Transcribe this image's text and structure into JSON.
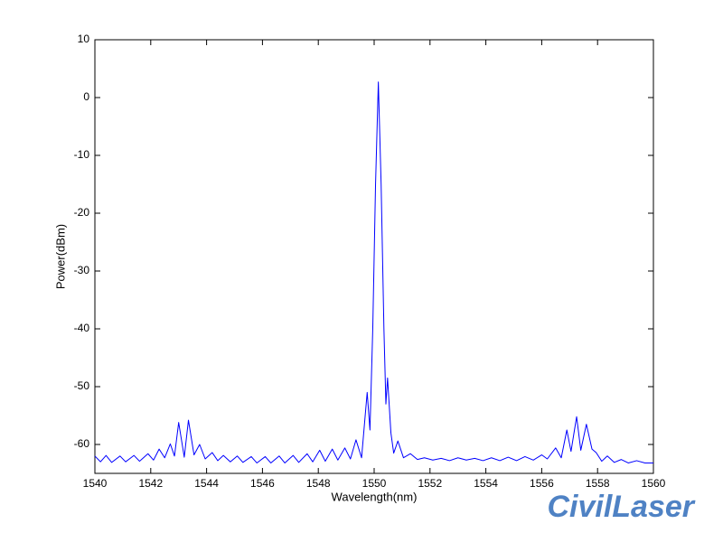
{
  "chart_data": {
    "type": "line",
    "xlabel": "Wavelength(nm)",
    "ylabel": "Power(dBm)",
    "watermark": "CivilLaser",
    "color": "#0000ff",
    "grid": false,
    "xlim": [
      1540,
      1560
    ],
    "xticks": [
      1540,
      1542,
      1544,
      1546,
      1548,
      1550,
      1552,
      1554,
      1556,
      1558,
      1560
    ],
    "ylim": [
      -65,
      10
    ],
    "yticks": [
      -60,
      -50,
      -40,
      -30,
      -20,
      -10,
      0,
      10
    ],
    "x": [
      1540.0,
      1540.2,
      1540.4,
      1540.6,
      1540.9,
      1541.1,
      1541.4,
      1541.6,
      1541.9,
      1542.1,
      1542.3,
      1542.5,
      1542.7,
      1542.85,
      1543.0,
      1543.2,
      1543.35,
      1543.55,
      1543.75,
      1543.95,
      1544.2,
      1544.4,
      1544.6,
      1544.85,
      1545.1,
      1545.3,
      1545.6,
      1545.8,
      1546.1,
      1546.3,
      1546.6,
      1546.8,
      1547.1,
      1547.3,
      1547.6,
      1547.8,
      1548.05,
      1548.25,
      1548.5,
      1548.7,
      1548.95,
      1549.15,
      1549.35,
      1549.55,
      1549.75,
      1549.85,
      1549.95,
      1550.05,
      1550.15,
      1550.25,
      1550.35,
      1550.42,
      1550.48,
      1550.6,
      1550.7,
      1550.85,
      1551.05,
      1551.3,
      1551.55,
      1551.8,
      1552.1,
      1552.4,
      1552.7,
      1553.0,
      1553.3,
      1553.6,
      1553.9,
      1554.2,
      1554.5,
      1554.8,
      1555.1,
      1555.4,
      1555.7,
      1556.0,
      1556.2,
      1556.5,
      1556.7,
      1556.9,
      1557.05,
      1557.25,
      1557.4,
      1557.6,
      1557.8,
      1557.95,
      1558.15,
      1558.35,
      1558.6,
      1558.85,
      1559.1,
      1559.4,
      1559.7,
      1560.0
    ],
    "values": [
      -62.0,
      -63.0,
      -61.9,
      -63.1,
      -62.0,
      -63.0,
      -61.9,
      -62.9,
      -61.6,
      -62.7,
      -60.8,
      -62.3,
      -59.9,
      -62.0,
      -56.2,
      -62.2,
      -55.8,
      -61.8,
      -60.0,
      -62.5,
      -61.4,
      -62.8,
      -61.9,
      -63.0,
      -62.0,
      -63.1,
      -62.1,
      -63.2,
      -62.1,
      -63.2,
      -62.0,
      -63.2,
      -61.9,
      -63.1,
      -61.6,
      -63.0,
      -61.0,
      -62.9,
      -60.8,
      -62.7,
      -60.6,
      -62.5,
      -59.2,
      -62.3,
      -51.0,
      -57.5,
      -40.0,
      -15.0,
      2.7,
      -15.0,
      -40.0,
      -53.0,
      -48.5,
      -58.0,
      -61.5,
      -59.4,
      -62.3,
      -61.6,
      -62.6,
      -62.3,
      -62.7,
      -62.4,
      -62.8,
      -62.3,
      -62.7,
      -62.4,
      -62.8,
      -62.3,
      -62.8,
      -62.2,
      -62.8,
      -62.1,
      -62.7,
      -61.8,
      -62.5,
      -60.6,
      -62.3,
      -57.5,
      -61.2,
      -55.2,
      -61.0,
      -56.5,
      -60.8,
      -61.4,
      -62.9,
      -62.0,
      -63.1,
      -62.6,
      -63.2,
      -62.8,
      -63.2,
      -63.2
    ]
  }
}
